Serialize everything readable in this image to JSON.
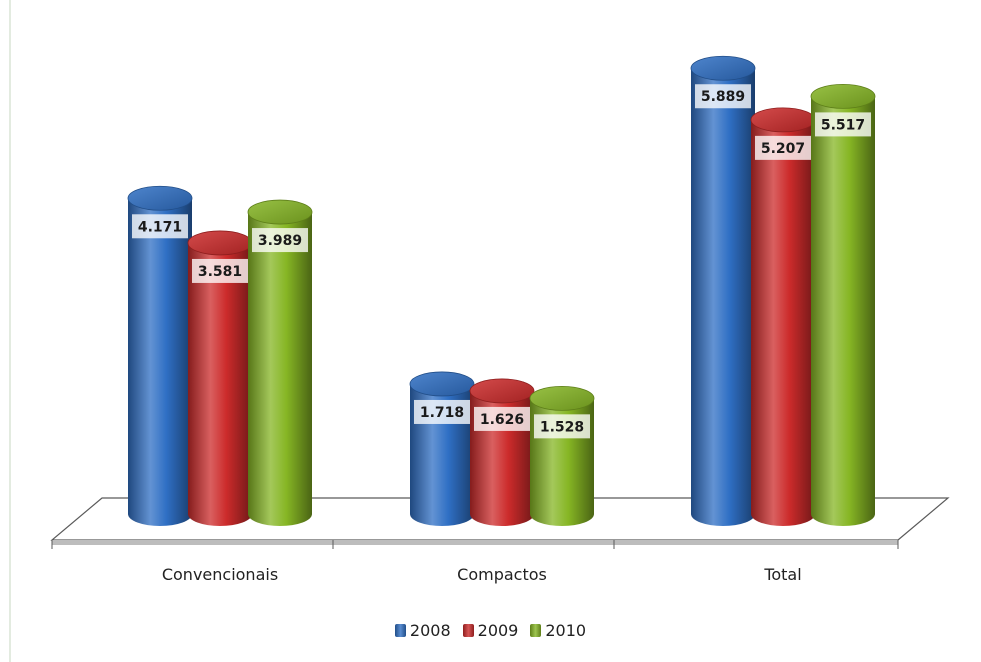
{
  "chart_data": {
    "type": "bar",
    "style": "3d-cylinder",
    "categories": [
      "Convencionais",
      "Compactos",
      "Total"
    ],
    "series": [
      {
        "name": "2008",
        "color": "#2f6fc4",
        "values": [
          4171,
          1718,
          5889
        ],
        "labels": [
          "4.171",
          "1.718",
          "5.889"
        ]
      },
      {
        "name": "2009",
        "color": "#cc2b2b",
        "values": [
          3581,
          1626,
          5207
        ],
        "labels": [
          "3.581",
          "1.626",
          "5.207"
        ]
      },
      {
        "name": "2010",
        "color": "#86b624",
        "values": [
          3989,
          1528,
          5517
        ],
        "labels": [
          "3.989",
          "1.528",
          "5.517"
        ]
      }
    ],
    "title": "",
    "xlabel": "",
    "ylabel": "",
    "ylim": [
      0,
      6500
    ],
    "grid": false,
    "legend": "bottom"
  }
}
